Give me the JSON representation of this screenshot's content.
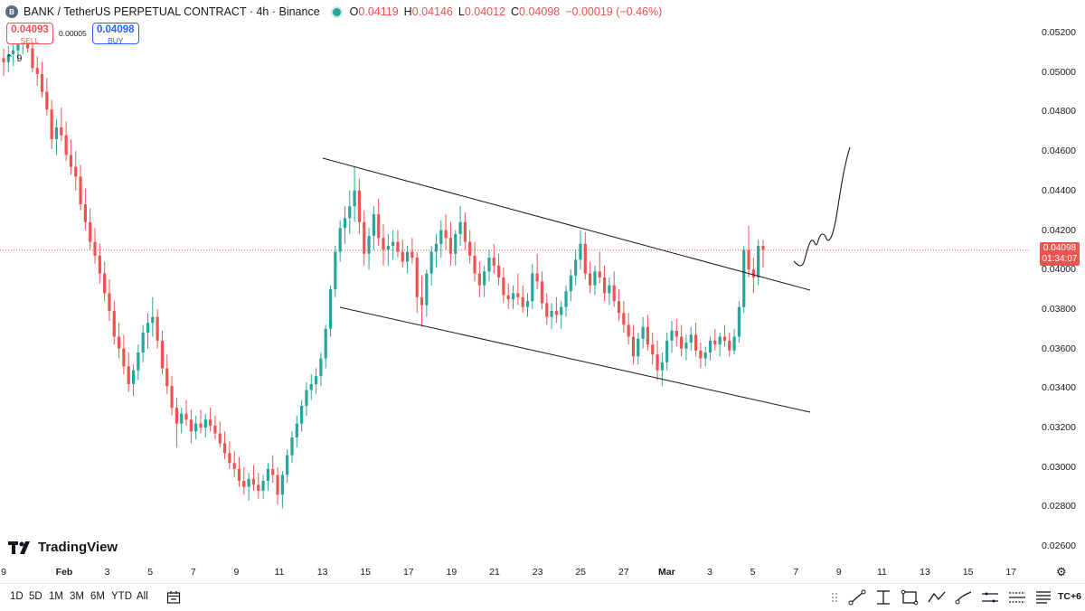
{
  "legend": {
    "symbol": "BANK / TetherUS PERPETUAL CONTRACT · 4h · Binance",
    "o_label": "O",
    "o_value": "0.04119",
    "h_label": "H",
    "h_value": "0.04146",
    "l_label": "L",
    "l_value": "0.04012",
    "c_label": "C",
    "c_value": "0.04098",
    "change": "−0.00019 (−0.46%)",
    "coin_icon": "bank-coin-icon"
  },
  "trade": {
    "sell_price": "0.04093",
    "sell_label": "SELL",
    "spread": "0.00005",
    "buy_price": "0.04098",
    "buy_label": "BUY"
  },
  "volume_toggle": "9",
  "price_axis": [
    "0.05200",
    "0.05000",
    "0.04800",
    "0.04600",
    "0.04400",
    "0.04200",
    "0.04000",
    "0.03800",
    "0.03600",
    "0.03400",
    "0.03200",
    "0.03000",
    "0.02800",
    "0.02600"
  ],
  "current_price": {
    "price": "0.04098",
    "countdown": "01:34:07"
  },
  "time_axis": [
    {
      "label": "9",
      "bold": false
    },
    {
      "label": "Feb",
      "bold": true
    },
    {
      "label": "3",
      "bold": false
    },
    {
      "label": "5",
      "bold": false
    },
    {
      "label": "7",
      "bold": false
    },
    {
      "label": "9",
      "bold": false
    },
    {
      "label": "11",
      "bold": false
    },
    {
      "label": "13",
      "bold": false
    },
    {
      "label": "15",
      "bold": false
    },
    {
      "label": "17",
      "bold": false
    },
    {
      "label": "19",
      "bold": false
    },
    {
      "label": "21",
      "bold": false
    },
    {
      "label": "23",
      "bold": false
    },
    {
      "label": "25",
      "bold": false
    },
    {
      "label": "27",
      "bold": false
    },
    {
      "label": "Mar",
      "bold": true
    },
    {
      "label": "3",
      "bold": false
    },
    {
      "label": "5",
      "bold": false
    },
    {
      "label": "7",
      "bold": false
    },
    {
      "label": "9",
      "bold": false
    },
    {
      "label": "11",
      "bold": false
    },
    {
      "label": "13",
      "bold": false
    },
    {
      "label": "15",
      "bold": false
    },
    {
      "label": "17",
      "bold": false
    }
  ],
  "branding": "TradingView",
  "ranges": [
    "1D",
    "5D",
    "1M",
    "3M",
    "6M",
    "YTD",
    "All"
  ],
  "tools": [
    {
      "name": "grip-icon"
    },
    {
      "name": "trend-line-icon"
    },
    {
      "name": "fib-icon"
    },
    {
      "name": "rectangle-icon"
    },
    {
      "name": "path-icon"
    },
    {
      "name": "brush-icon"
    },
    {
      "name": "measure-icon"
    },
    {
      "name": "long-position-icon"
    },
    {
      "name": "text-icon"
    }
  ],
  "tools_more": "TC+6",
  "colors": {
    "up": "#26a69a",
    "down": "#ef5350",
    "line": "#131722"
  },
  "chart_data": {
    "type": "candlestick",
    "yrange": [
      0.0255,
      0.0526
    ],
    "candles": [
      [
        0.0507,
        0.0512,
        0.0498,
        0.0505
      ],
      [
        0.0505,
        0.0513,
        0.05,
        0.0509
      ],
      [
        0.0509,
        0.0515,
        0.0503,
        0.0511
      ],
      [
        0.0511,
        0.0519,
        0.0506,
        0.0514
      ],
      [
        0.0514,
        0.0522,
        0.0509,
        0.0518
      ],
      [
        0.0518,
        0.0525,
        0.051,
        0.0512
      ],
      [
        0.0512,
        0.052,
        0.05,
        0.0502
      ],
      [
        0.0502,
        0.0508,
        0.0493,
        0.0499
      ],
      [
        0.0499,
        0.0505,
        0.0487,
        0.049
      ],
      [
        0.049,
        0.0497,
        0.0478,
        0.0481
      ],
      [
        0.0481,
        0.0486,
        0.0461,
        0.0466
      ],
      [
        0.0466,
        0.0476,
        0.0458,
        0.0472
      ],
      [
        0.0472,
        0.0482,
        0.0465,
        0.0468
      ],
      [
        0.0468,
        0.0475,
        0.0455,
        0.0458
      ],
      [
        0.0458,
        0.0466,
        0.0448,
        0.0452
      ],
      [
        0.0452,
        0.046,
        0.044,
        0.0447
      ],
      [
        0.0447,
        0.0453,
        0.043,
        0.0433
      ],
      [
        0.0433,
        0.0441,
        0.042,
        0.0424
      ],
      [
        0.0424,
        0.0431,
        0.041,
        0.0414
      ],
      [
        0.0414,
        0.0421,
        0.0403,
        0.0407
      ],
      [
        0.0407,
        0.0413,
        0.0393,
        0.0398
      ],
      [
        0.0398,
        0.0404,
        0.0384,
        0.0388
      ],
      [
        0.0388,
        0.0395,
        0.0374,
        0.0379
      ],
      [
        0.0379,
        0.0384,
        0.0362,
        0.0366
      ],
      [
        0.0366,
        0.0373,
        0.0355,
        0.036
      ],
      [
        0.036,
        0.0367,
        0.0347,
        0.0351
      ],
      [
        0.0351,
        0.0358,
        0.0338,
        0.0342
      ],
      [
        0.0342,
        0.0352,
        0.0336,
        0.0349
      ],
      [
        0.0349,
        0.0362,
        0.0344,
        0.0358
      ],
      [
        0.0358,
        0.0372,
        0.0353,
        0.0368
      ],
      [
        0.0368,
        0.0378,
        0.036,
        0.0373
      ],
      [
        0.0373,
        0.0386,
        0.0366,
        0.0376
      ],
      [
        0.0376,
        0.038,
        0.036,
        0.0364
      ],
      [
        0.0364,
        0.0369,
        0.0347,
        0.035
      ],
      [
        0.035,
        0.0357,
        0.0337,
        0.0341
      ],
      [
        0.0341,
        0.0346,
        0.0326,
        0.033
      ],
      [
        0.033,
        0.0335,
        0.031,
        0.0322
      ],
      [
        0.0322,
        0.033,
        0.0317,
        0.0327
      ],
      [
        0.0327,
        0.0334,
        0.0321,
        0.0324
      ],
      [
        0.0324,
        0.0329,
        0.0312,
        0.0318
      ],
      [
        0.0318,
        0.0326,
        0.0314,
        0.0322
      ],
      [
        0.0322,
        0.0329,
        0.0317,
        0.032
      ],
      [
        0.032,
        0.0327,
        0.0315,
        0.0324
      ],
      [
        0.0324,
        0.033,
        0.0318,
        0.0321
      ],
      [
        0.0321,
        0.0326,
        0.0314,
        0.0317
      ],
      [
        0.0317,
        0.0323,
        0.031,
        0.0312
      ],
      [
        0.0312,
        0.0318,
        0.0304,
        0.0307
      ],
      [
        0.0307,
        0.0313,
        0.0299,
        0.0302
      ],
      [
        0.0302,
        0.0308,
        0.0295,
        0.0299
      ],
      [
        0.0299,
        0.0305,
        0.029,
        0.0293
      ],
      [
        0.0293,
        0.03,
        0.0286,
        0.029
      ],
      [
        0.029,
        0.0297,
        0.0283,
        0.0294
      ],
      [
        0.0294,
        0.0301,
        0.0288,
        0.0291
      ],
      [
        0.0291,
        0.0297,
        0.0284,
        0.0288
      ],
      [
        0.0288,
        0.0296,
        0.0284,
        0.0293
      ],
      [
        0.0293,
        0.0302,
        0.0288,
        0.0299
      ],
      [
        0.0299,
        0.0306,
        0.0292,
        0.0296
      ],
      [
        0.0296,
        0.03,
        0.0281,
        0.0286
      ],
      [
        0.0286,
        0.0298,
        0.0279,
        0.0296
      ],
      [
        0.0296,
        0.0309,
        0.0292,
        0.0306
      ],
      [
        0.0306,
        0.0318,
        0.0302,
        0.0315
      ],
      [
        0.0315,
        0.0326,
        0.031,
        0.0322
      ],
      [
        0.0322,
        0.0334,
        0.0318,
        0.0331
      ],
      [
        0.0331,
        0.0343,
        0.0326,
        0.0339
      ],
      [
        0.0339,
        0.0347,
        0.0334,
        0.0342
      ],
      [
        0.0342,
        0.035,
        0.0337,
        0.0346
      ],
      [
        0.0346,
        0.0358,
        0.0341,
        0.0355
      ],
      [
        0.0355,
        0.0372,
        0.035,
        0.037
      ],
      [
        0.037,
        0.0392,
        0.0366,
        0.039
      ],
      [
        0.039,
        0.0412,
        0.0386,
        0.0409
      ],
      [
        0.0409,
        0.0425,
        0.0404,
        0.0421
      ],
      [
        0.0421,
        0.0432,
        0.0413,
        0.0426
      ],
      [
        0.0426,
        0.044,
        0.0418,
        0.0432
      ],
      [
        0.0432,
        0.0452,
        0.0424,
        0.044
      ],
      [
        0.044,
        0.0446,
        0.0418,
        0.0424
      ],
      [
        0.0424,
        0.043,
        0.0402,
        0.0408
      ],
      [
        0.0408,
        0.0421,
        0.04,
        0.0417
      ],
      [
        0.0417,
        0.0432,
        0.041,
        0.0428
      ],
      [
        0.0428,
        0.0436,
        0.0412,
        0.0416
      ],
      [
        0.0416,
        0.0423,
        0.0402,
        0.041
      ],
      [
        0.041,
        0.0418,
        0.0402,
        0.0412
      ],
      [
        0.0412,
        0.042,
        0.0405,
        0.0414
      ],
      [
        0.0414,
        0.042,
        0.0406,
        0.0409
      ],
      [
        0.0409,
        0.0415,
        0.0401,
        0.0404
      ],
      [
        0.0404,
        0.0412,
        0.0398,
        0.0409
      ],
      [
        0.0409,
        0.0416,
        0.0403,
        0.0406
      ],
      [
        0.0406,
        0.0409,
        0.0378,
        0.0386
      ],
      [
        0.0386,
        0.0397,
        0.0371,
        0.0382
      ],
      [
        0.0382,
        0.04,
        0.0376,
        0.0398
      ],
      [
        0.0398,
        0.0412,
        0.0392,
        0.0409
      ],
      [
        0.0409,
        0.0418,
        0.0401,
        0.0413
      ],
      [
        0.0413,
        0.0425,
        0.0406,
        0.042
      ],
      [
        0.042,
        0.0428,
        0.041,
        0.0416
      ],
      [
        0.0416,
        0.0424,
        0.0402,
        0.0408
      ],
      [
        0.0408,
        0.042,
        0.0402,
        0.0418
      ],
      [
        0.0418,
        0.0432,
        0.0412,
        0.0424
      ],
      [
        0.0424,
        0.0429,
        0.041,
        0.0414
      ],
      [
        0.0414,
        0.042,
        0.0403,
        0.0407
      ],
      [
        0.0407,
        0.0414,
        0.0394,
        0.0398
      ],
      [
        0.0398,
        0.0404,
        0.0386,
        0.0392
      ],
      [
        0.0392,
        0.0402,
        0.0386,
        0.0399
      ],
      [
        0.0399,
        0.041,
        0.0394,
        0.0406
      ],
      [
        0.0406,
        0.0413,
        0.0398,
        0.0402
      ],
      [
        0.0402,
        0.0408,
        0.0392,
        0.0396
      ],
      [
        0.0396,
        0.0401,
        0.0383,
        0.0387
      ],
      [
        0.0387,
        0.0393,
        0.038,
        0.0385
      ],
      [
        0.0385,
        0.0392,
        0.038,
        0.0388
      ],
      [
        0.0388,
        0.0398,
        0.0382,
        0.0386
      ],
      [
        0.0386,
        0.0392,
        0.0378,
        0.0381
      ],
      [
        0.0381,
        0.0388,
        0.0376,
        0.0384
      ],
      [
        0.0384,
        0.0403,
        0.038,
        0.0398
      ],
      [
        0.0398,
        0.0408,
        0.039,
        0.0394
      ],
      [
        0.0394,
        0.0399,
        0.038,
        0.0383
      ],
      [
        0.0383,
        0.0388,
        0.0372,
        0.0376
      ],
      [
        0.0376,
        0.0383,
        0.037,
        0.0379
      ],
      [
        0.0379,
        0.0386,
        0.0373,
        0.0377
      ],
      [
        0.0377,
        0.0384,
        0.037,
        0.0381
      ],
      [
        0.0381,
        0.0392,
        0.0376,
        0.0389
      ],
      [
        0.0389,
        0.04,
        0.0384,
        0.0397
      ],
      [
        0.0397,
        0.041,
        0.0392,
        0.0405
      ],
      [
        0.0405,
        0.042,
        0.04,
        0.0413
      ],
      [
        0.0413,
        0.0419,
        0.0395,
        0.0398
      ],
      [
        0.0398,
        0.0404,
        0.0388,
        0.0392
      ],
      [
        0.0392,
        0.0402,
        0.0387,
        0.0399
      ],
      [
        0.0399,
        0.0409,
        0.0393,
        0.0396
      ],
      [
        0.0396,
        0.0402,
        0.0384,
        0.0388
      ],
      [
        0.0388,
        0.0396,
        0.0382,
        0.0392
      ],
      [
        0.0392,
        0.0399,
        0.0381,
        0.0384
      ],
      [
        0.0384,
        0.039,
        0.0374,
        0.0378
      ],
      [
        0.0378,
        0.0384,
        0.0368,
        0.0372
      ],
      [
        0.0372,
        0.0378,
        0.0362,
        0.0366
      ],
      [
        0.0366,
        0.0372,
        0.0352,
        0.0356
      ],
      [
        0.0356,
        0.0368,
        0.0352,
        0.0365
      ],
      [
        0.0365,
        0.0376,
        0.036,
        0.0371
      ],
      [
        0.0371,
        0.0377,
        0.0359,
        0.0362
      ],
      [
        0.0362,
        0.0368,
        0.0352,
        0.0357
      ],
      [
        0.0357,
        0.0364,
        0.0344,
        0.0349
      ],
      [
        0.0349,
        0.0358,
        0.0341,
        0.0353
      ],
      [
        0.0353,
        0.0368,
        0.0349,
        0.0364
      ],
      [
        0.0364,
        0.0374,
        0.0358,
        0.0369
      ],
      [
        0.0369,
        0.0375,
        0.0361,
        0.0366
      ],
      [
        0.0366,
        0.0372,
        0.0356,
        0.036
      ],
      [
        0.036,
        0.0367,
        0.0354,
        0.0363
      ],
      [
        0.0363,
        0.0371,
        0.0359,
        0.0367
      ],
      [
        0.0367,
        0.0373,
        0.0356,
        0.0359
      ],
      [
        0.0359,
        0.0363,
        0.035,
        0.0355
      ],
      [
        0.0355,
        0.0361,
        0.0351,
        0.0358
      ],
      [
        0.0358,
        0.0366,
        0.0354,
        0.0364
      ],
      [
        0.0364,
        0.037,
        0.0359,
        0.0362
      ],
      [
        0.0362,
        0.0368,
        0.0356,
        0.0366
      ],
      [
        0.0366,
        0.0372,
        0.0361,
        0.0364
      ],
      [
        0.0364,
        0.0368,
        0.0356,
        0.0359
      ],
      [
        0.0359,
        0.037,
        0.0357,
        0.0366
      ],
      [
        0.0366,
        0.0384,
        0.0363,
        0.0381
      ],
      [
        0.0381,
        0.0412,
        0.0378,
        0.041
      ],
      [
        0.041,
        0.0422,
        0.0396,
        0.04
      ],
      [
        0.04,
        0.0406,
        0.0388,
        0.0396
      ],
      [
        0.0396,
        0.0415,
        0.0392,
        0.0412
      ],
      [
        0.0412,
        0.0415,
        0.0401,
        0.041
      ]
    ],
    "trendlines": [
      {
        "from": [
          "Feb 13",
          "0.04570"
        ],
        "to": [
          "Mar 8",
          "0.03900"
        ]
      },
      {
        "from": [
          "Feb 13",
          "0.03810"
        ],
        "to": [
          "Mar 8",
          "0.03270"
        ]
      }
    ]
  }
}
